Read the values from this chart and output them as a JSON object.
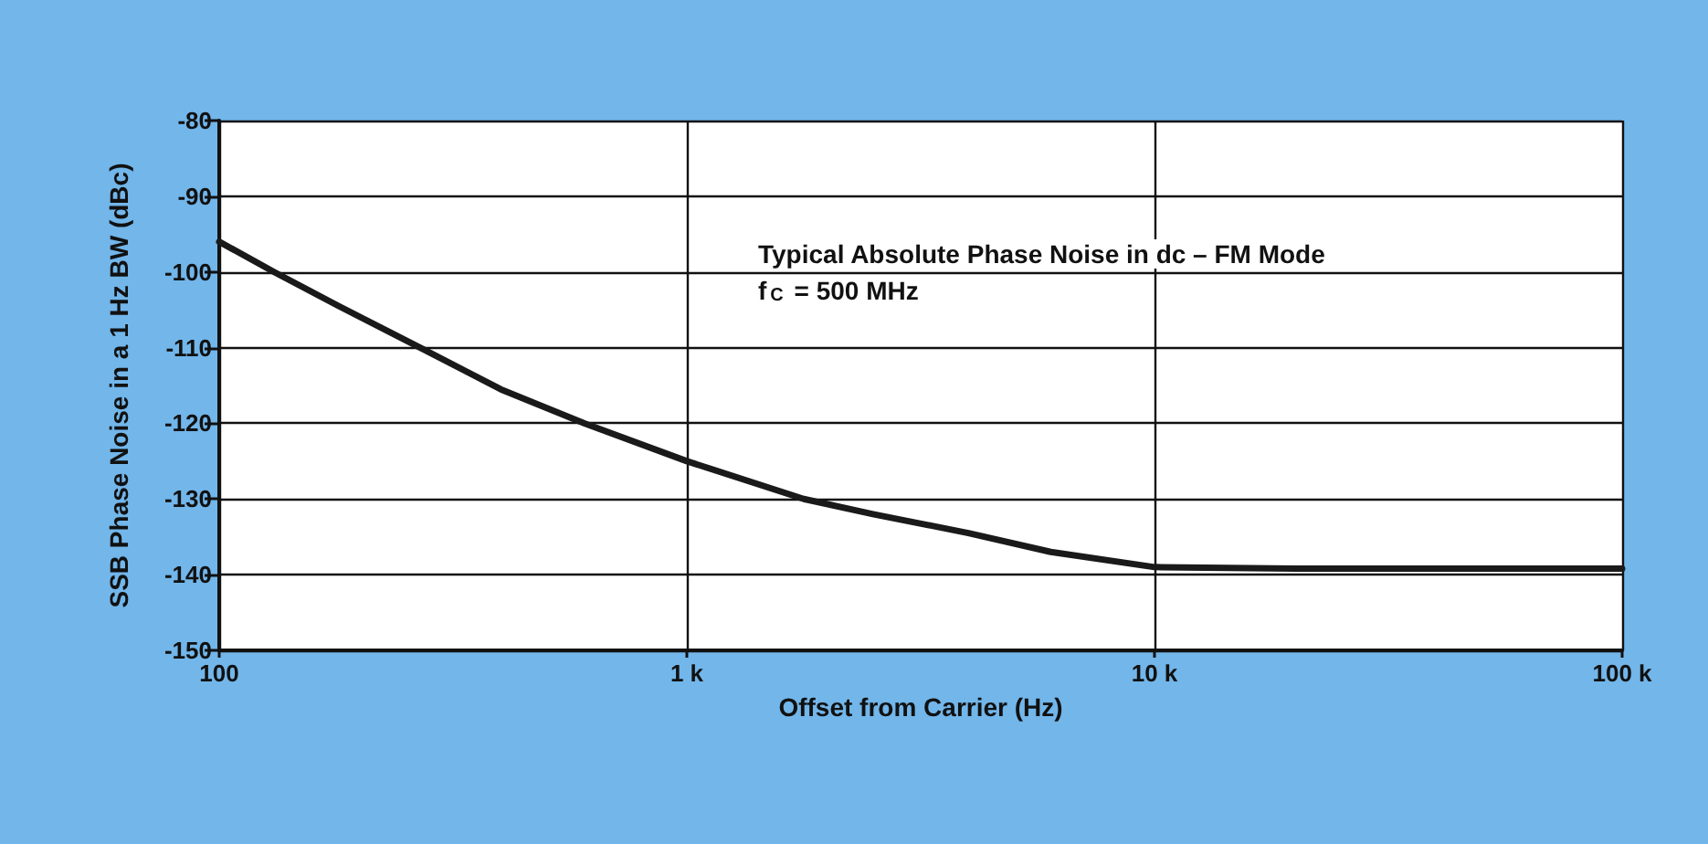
{
  "chart_data": {
    "type": "line",
    "xlabel": "Offset from Carrier (Hz)",
    "ylabel": "SSB Phase Noise in a 1 Hz BW (dBc)",
    "annotations": [
      "Typical Absolute Phase Noise in dc – FM Mode",
      "f$_{C}$ = 500 MHz"
    ],
    "x": [
      100,
      131,
      180,
      269,
      400,
      604,
      1000,
      1778,
      2500,
      4000,
      6000,
      10000,
      20000,
      50000,
      100000
    ],
    "series": [
      {
        "color": "#1a1a1a",
        "values": [
          -96,
          -100,
          -104.5,
          -110,
          -115.5,
          -120,
          -125,
          -130,
          -132,
          -134.5,
          -137,
          -139,
          -139.2,
          -139.2,
          -139.2
        ]
      }
    ],
    "log": "x",
    "xlim": [
      100,
      100000
    ],
    "xticks": [
      100,
      {
        "value": 1000,
        "label": "1 k"
      },
      {
        "value": 10000,
        "label": "10 k"
      },
      {
        "value": 100000,
        "label": "100 k"
      }
    ],
    "ylim": [
      -150,
      -80
    ],
    "yticks": [
      -150,
      -140,
      -130,
      -120,
      -110,
      -100,
      -90,
      -80
    ],
    "grid": true,
    "marker": "none",
    "line_style": "solid"
  }
}
